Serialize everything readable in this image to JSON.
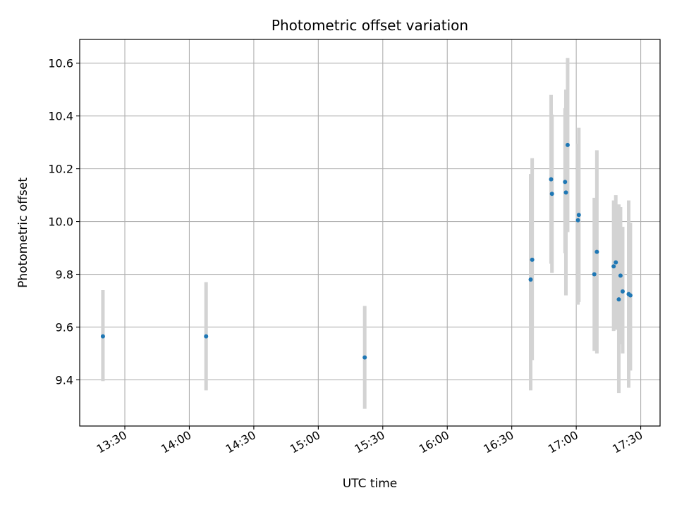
{
  "chart_data": {
    "type": "scatter",
    "title": "Photometric offset variation",
    "xlabel": "UTC time",
    "ylabel": "Photometric offset",
    "x_axis_type": "time",
    "xlim": [
      "13:09",
      "17:39"
    ],
    "ylim": [
      9.225,
      10.69
    ],
    "x_ticks": [
      "13:30",
      "14:00",
      "14:30",
      "15:00",
      "15:30",
      "16:00",
      "16:30",
      "17:00",
      "17:30"
    ],
    "y_ticks": [
      9.4,
      9.6,
      9.8,
      10.0,
      10.2,
      10.4,
      10.6
    ],
    "y_tick_labels": [
      "9.4",
      "9.6",
      "9.8",
      "10.0",
      "10.2",
      "10.4",
      "10.6"
    ],
    "grid": true,
    "point_color": "#1f77b4",
    "errorbar_color": "#d3d3d3",
    "points": [
      {
        "x": "13:19:48",
        "y": 9.565,
        "err_low": 9.395,
        "err_high": 9.74
      },
      {
        "x": "14:07:48",
        "y": 9.565,
        "err_low": 9.36,
        "err_high": 9.77
      },
      {
        "x": "15:21:36",
        "y": 9.485,
        "err_low": 9.29,
        "err_high": 9.68
      },
      {
        "x": "16:38:48",
        "y": 9.78,
        "err_low": 9.36,
        "err_high": 10.18
      },
      {
        "x": "16:39:30",
        "y": 9.855,
        "err_low": 9.475,
        "err_high": 10.24
      },
      {
        "x": "16:48:18",
        "y": 10.16,
        "err_low": 9.84,
        "err_high": 10.48
      },
      {
        "x": "16:48:42",
        "y": 10.105,
        "err_low": 9.805,
        "err_high": 10.405
      },
      {
        "x": "16:54:48",
        "y": 10.15,
        "err_low": 9.88,
        "err_high": 10.43
      },
      {
        "x": "16:55:12",
        "y": 10.11,
        "err_low": 9.72,
        "err_high": 10.5
      },
      {
        "x": "16:56:00",
        "y": 10.29,
        "err_low": 9.96,
        "err_high": 10.62
      },
      {
        "x": "17:00:48",
        "y": 10.005,
        "err_low": 9.685,
        "err_high": 10.295
      },
      {
        "x": "17:01:12",
        "y": 10.025,
        "err_low": 9.695,
        "err_high": 10.355
      },
      {
        "x": "17:08:24",
        "y": 9.8,
        "err_low": 9.51,
        "err_high": 10.09
      },
      {
        "x": "17:09:36",
        "y": 9.885,
        "err_low": 9.5,
        "err_high": 10.27
      },
      {
        "x": "17:17:24",
        "y": 9.83,
        "err_low": 9.585,
        "err_high": 10.08
      },
      {
        "x": "17:18:24",
        "y": 9.845,
        "err_low": 9.59,
        "err_high": 10.1
      },
      {
        "x": "17:19:48",
        "y": 9.705,
        "err_low": 9.35,
        "err_high": 10.065
      },
      {
        "x": "17:20:36",
        "y": 9.795,
        "err_low": 9.535,
        "err_high": 10.055
      },
      {
        "x": "17:21:36",
        "y": 9.735,
        "err_low": 9.5,
        "err_high": 9.98
      },
      {
        "x": "17:24:24",
        "y": 9.725,
        "err_low": 9.37,
        "err_high": 10.08
      },
      {
        "x": "17:25:12",
        "y": 9.72,
        "err_low": 9.435,
        "err_high": 9.995
      }
    ]
  }
}
